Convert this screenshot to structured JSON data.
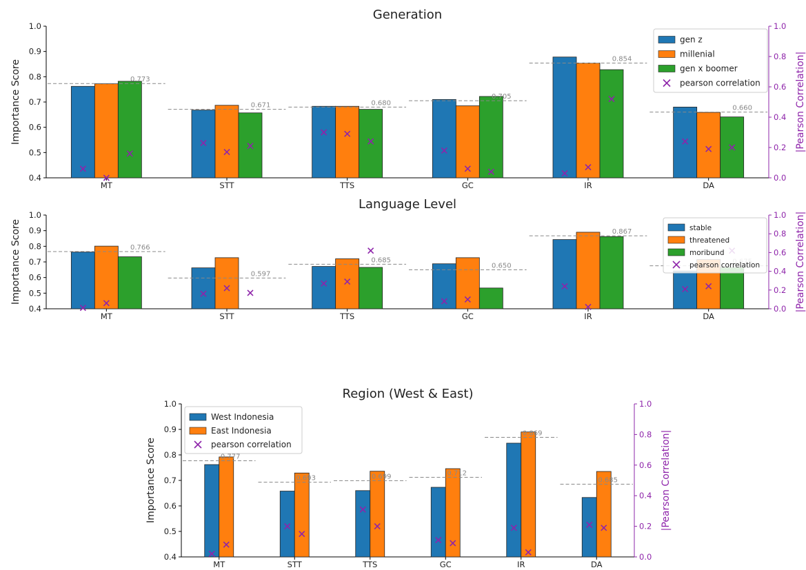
{
  "chart_data": [
    {
      "type": "bar",
      "title": "Generation",
      "ylabel": "Importance Score",
      "y2label": "|Pearson Correlation|",
      "ylim": [
        0.4,
        1.0
      ],
      "y2lim": [
        0.0,
        1.0
      ],
      "yticks": [
        "0.4",
        "0.5",
        "0.6",
        "0.7",
        "0.8",
        "0.9",
        "1.0"
      ],
      "y2ticks": [
        "0.0",
        "0.2",
        "0.4",
        "0.6",
        "0.8",
        "1.0"
      ],
      "categories": [
        "MT",
        "STT",
        "TTS",
        "GC",
        "IR",
        "DA"
      ],
      "legend_position": "top-right",
      "series": [
        {
          "name": "gen z",
          "color": "#1f77b4",
          "values": [
            0.762,
            0.668,
            0.683,
            0.71,
            0.878,
            0.68
          ]
        },
        {
          "name": "millenial",
          "color": "#ff7f0e",
          "values": [
            0.772,
            0.687,
            0.683,
            0.685,
            0.854,
            0.659
          ]
        },
        {
          "name": "gen x boomer",
          "color": "#2ca02c",
          "values": [
            0.782,
            0.657,
            0.671,
            0.722,
            0.828,
            0.641
          ]
        }
      ],
      "correlation": {
        "name": "pearson correlation",
        "color": "#8e24aa",
        "values": [
          [
            0.06,
            0.0,
            0.16
          ],
          [
            0.23,
            0.17,
            0.21
          ],
          [
            0.3,
            0.29,
            0.24
          ],
          [
            0.18,
            0.06,
            0.04
          ],
          [
            0.03,
            0.07,
            0.52
          ],
          [
            0.24,
            0.19,
            0.2
          ]
        ]
      },
      "averages": [
        0.773,
        0.671,
        0.68,
        0.705,
        0.854,
        0.66
      ],
      "average_labels": [
        "0.773",
        "0.671",
        "0.680",
        "0.705",
        "0.854",
        "0.660"
      ]
    },
    {
      "type": "bar",
      "title": "Language Level",
      "ylabel": "Importance Score",
      "y2label": "|Pearson Correlation|",
      "ylim": [
        0.4,
        1.0
      ],
      "y2lim": [
        0.0,
        1.0
      ],
      "yticks": [
        "0.4",
        "0.5",
        "0.6",
        "0.7",
        "0.8",
        "0.9",
        "1.0"
      ],
      "y2ticks": [
        "0.0",
        "0.2",
        "0.4",
        "0.6",
        "0.8",
        "1.0"
      ],
      "categories": [
        "MT",
        "STT",
        "TTS",
        "GC",
        "IR",
        "DA"
      ],
      "legend_position": "top-right",
      "series": [
        {
          "name": "stable",
          "color": "#1f77b4",
          "values": [
            0.763,
            0.662,
            0.671,
            0.688,
            0.843,
            0.642
          ]
        },
        {
          "name": "threatened",
          "color": "#ff7f0e",
          "values": [
            0.801,
            0.727,
            0.72,
            0.727,
            0.89,
            0.715
          ]
        },
        {
          "name": "moribund",
          "color": "#2ca02c",
          "values": [
            0.733,
            0.4,
            0.665,
            0.533,
            0.862,
            0.665
          ]
        }
      ],
      "correlation": {
        "name": "pearson correlation",
        "color": "#8e24aa",
        "values": [
          [
            0.01,
            0.06,
            null
          ],
          [
            0.16,
            0.22,
            0.17
          ],
          [
            0.27,
            0.29,
            0.62
          ],
          [
            0.08,
            0.1,
            null
          ],
          [
            0.24,
            0.02,
            null
          ],
          [
            0.21,
            0.24,
            0.62
          ]
        ]
      },
      "averages": [
        0.766,
        0.597,
        0.685,
        0.65,
        0.867,
        0.675
      ],
      "average_labels": [
        "0.766",
        "0.597",
        "0.685",
        "0.650",
        "0.867",
        "0.675"
      ]
    },
    {
      "type": "bar",
      "title": "Region (West & East)",
      "ylabel": "Importance Score",
      "y2label": "|Pearson Correlation|",
      "ylim": [
        0.4,
        1.0
      ],
      "y2lim": [
        0.0,
        1.0
      ],
      "yticks": [
        "0.4",
        "0.5",
        "0.6",
        "0.7",
        "0.8",
        "0.9",
        "1.0"
      ],
      "y2ticks": [
        "0.0",
        "0.2",
        "0.4",
        "0.6",
        "0.8",
        "1.0"
      ],
      "categories": [
        "MT",
        "STT",
        "TTS",
        "GC",
        "IR",
        "DA"
      ],
      "legend_position": "top-left",
      "series": [
        {
          "name": "West Indonesia",
          "color": "#1f77b4",
          "values": [
            0.762,
            0.658,
            0.66,
            0.673,
            0.846,
            0.633
          ]
        },
        {
          "name": "East Indonesia",
          "color": "#ff7f0e",
          "values": [
            0.792,
            0.729,
            0.736,
            0.746,
            0.89,
            0.735
          ]
        }
      ],
      "correlation": {
        "name": "pearson correlation",
        "color": "#8e24aa",
        "values": [
          [
            0.02,
            0.08
          ],
          [
            0.2,
            0.15
          ],
          [
            0.31,
            0.2
          ],
          [
            0.11,
            0.09
          ],
          [
            0.19,
            0.03
          ],
          [
            0.21,
            0.19
          ]
        ]
      },
      "averages": [
        0.777,
        0.693,
        0.699,
        0.712,
        0.869,
        0.685
      ],
      "average_labels": [
        "0.777",
        "0.693",
        "0.699",
        "0.712",
        "0.869",
        "0.685"
      ]
    }
  ]
}
